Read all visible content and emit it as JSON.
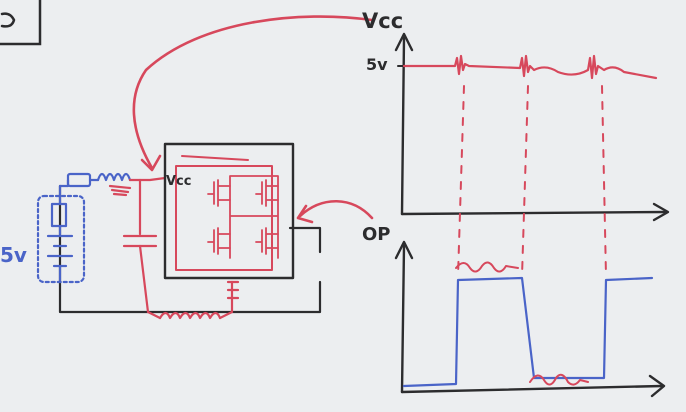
{
  "labels": {
    "vcc_axis": "Vcc",
    "vcc_level": "5v",
    "op_axis": "OP",
    "battery": "5v",
    "chip_vcc": "Vcc"
  },
  "colors": {
    "board": "#eceef0",
    "ink": "#2c2c2e",
    "red": "#d7485c",
    "blue": "#4a64c8"
  }
}
